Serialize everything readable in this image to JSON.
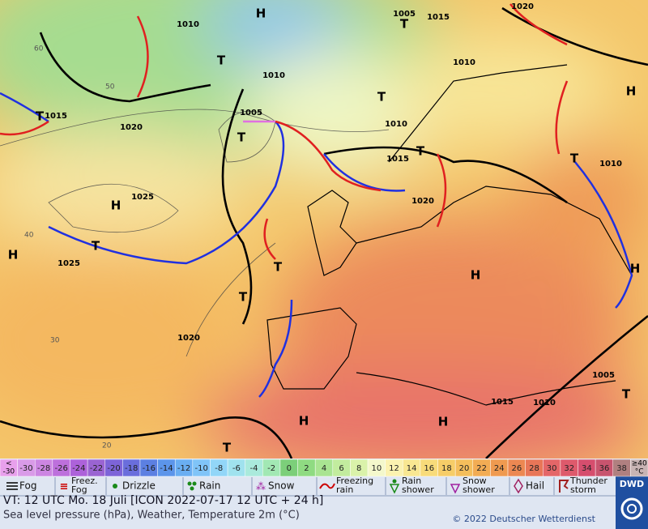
{
  "map": {
    "isobar_labels": [
      "1010",
      "1005",
      "1015",
      "1020",
      "1010",
      "1010",
      "1015",
      "1020",
      "1005",
      "1010",
      "1015",
      "1020",
      "1025",
      "1025",
      "1020",
      "1010",
      "1005",
      "1015",
      "1010"
    ],
    "pressure_centers": [
      "H",
      "H",
      "H",
      "H",
      "H",
      "H",
      "H",
      "H",
      "T",
      "T",
      "T",
      "T",
      "T",
      "T",
      "T",
      "T",
      "T",
      "T",
      "T",
      "T"
    ],
    "latitude_labels": [
      "60",
      "50",
      "40",
      "30",
      "20"
    ]
  },
  "temperature_scale": {
    "below": {
      "symbol": "<",
      "value": "-30",
      "color": "#e8a0ec"
    },
    "cells": [
      {
        "label": "-30",
        "color": "#d99be8"
      },
      {
        "label": "-28",
        "color": "#cc86e2"
      },
      {
        "label": "-26",
        "color": "#bd70dc"
      },
      {
        "label": "-24",
        "color": "#ad62da"
      },
      {
        "label": "-22",
        "color": "#9a64d2"
      },
      {
        "label": "-20",
        "color": "#7d64d8"
      },
      {
        "label": "-18",
        "color": "#6a6edc"
      },
      {
        "label": "-16",
        "color": "#5c80e2"
      },
      {
        "label": "-14",
        "color": "#5c95ea"
      },
      {
        "label": "-12",
        "color": "#6aaef2"
      },
      {
        "label": "-10",
        "color": "#80c4f8"
      },
      {
        "label": "-8",
        "color": "#92d6f8"
      },
      {
        "label": "-6",
        "color": "#a0e2ee"
      },
      {
        "label": "-4",
        "color": "#aaeadc"
      },
      {
        "label": "-2",
        "color": "#a2e8b4"
      },
      {
        "label": "0",
        "color": "#7ccf7a"
      },
      {
        "label": "2",
        "color": "#8fdb82"
      },
      {
        "label": "4",
        "color": "#a9e492"
      },
      {
        "label": "6",
        "color": "#c2ec9e"
      },
      {
        "label": "8",
        "color": "#daf2aa"
      },
      {
        "label": "10",
        "color": "#f4f8cc"
      },
      {
        "label": "12",
        "color": "#fbf2b0"
      },
      {
        "label": "14",
        "color": "#f9e792"
      },
      {
        "label": "16",
        "color": "#f8db7a"
      },
      {
        "label": "18",
        "color": "#f6cd68"
      },
      {
        "label": "20",
        "color": "#f4be5c"
      },
      {
        "label": "22",
        "color": "#f2ac54"
      },
      {
        "label": "24",
        "color": "#ef9a50"
      },
      {
        "label": "26",
        "color": "#ec8852"
      },
      {
        "label": "28",
        "color": "#e87658"
      },
      {
        "label": "30",
        "color": "#e46668"
      },
      {
        "label": "32",
        "color": "#de5a6c"
      },
      {
        "label": "34",
        "color": "#d64e6e"
      },
      {
        "label": "36",
        "color": "#c8546e"
      },
      {
        "label": "38",
        "color": "#b08080"
      }
    ],
    "above": {
      "value": "≥40",
      "unit": "°C",
      "color": "#c8b4b4"
    }
  },
  "weather_legend": [
    [
      "Fog"
    ],
    [
      "Freez.",
      "Fog"
    ],
    [
      "Drizzle"
    ],
    [
      "Rain"
    ],
    [
      "Snow"
    ],
    [
      "Freezing",
      "rain"
    ],
    [
      "Rain",
      "shower"
    ],
    [
      "Snow",
      "shower"
    ],
    [
      "Hail"
    ],
    [
      "Thunder",
      "storm"
    ]
  ],
  "footer": {
    "valid_time": "VT: 12 UTC Mo.  18 Juli [ICON 2022-07-17  12 UTC + 24 h]",
    "description": "Sea level pressure (hPa), Weather, Temperature 2m (°C)",
    "copyright": "© 2022 Deutscher Wetterdienst",
    "logo": "DWD"
  }
}
